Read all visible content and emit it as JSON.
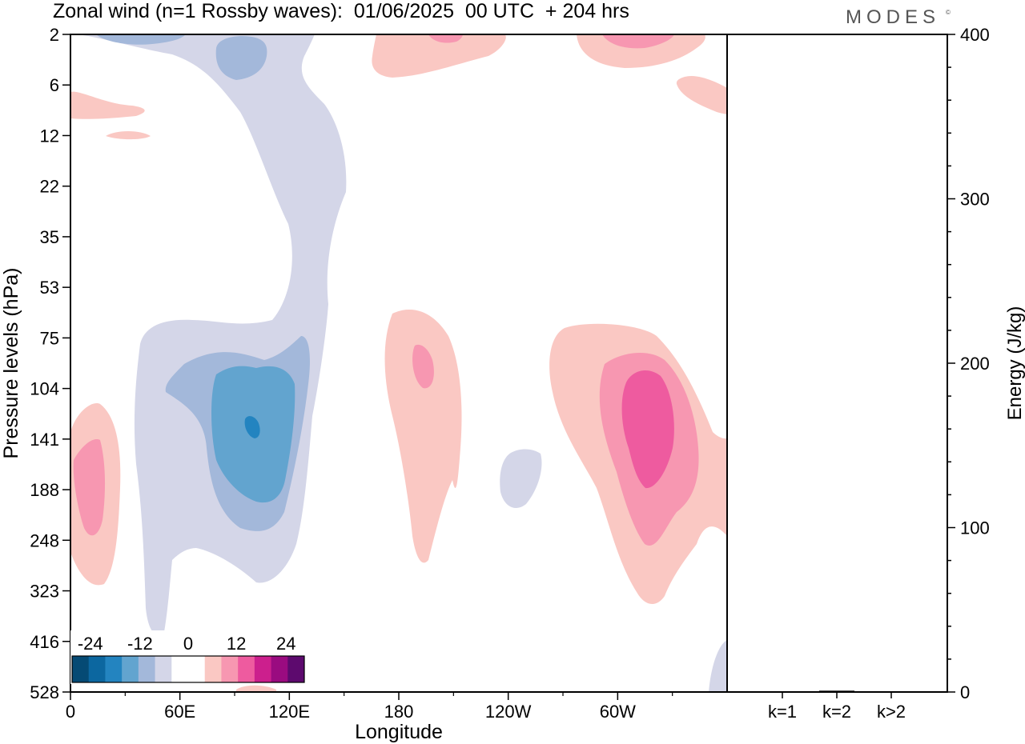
{
  "title": "Zonal wind (n=1 Rossby waves):  01/06/2025  00 UTC  + 204 hrs",
  "brand": "MODES",
  "brand_mark": "©",
  "colors": {
    "neg_light": "#d4d6e8",
    "neg_2": "#a3b8da",
    "neg_3": "#62a4cf",
    "neg_4": "#2384c0",
    "neg_5": "#0c67a0",
    "neg_6": "#054a74",
    "pos_light": "#fac8c3",
    "pos_2": "#f797b1",
    "pos_3": "#ee5b9f",
    "pos_4": "#cc1f8d",
    "pos_5": "#9a0b80",
    "pos_6": "#5d0a6e",
    "zero": "#ffffff"
  },
  "chart_data": [
    {
      "type": "heatmap",
      "title": "Zonal wind (n=1 Rossby waves):  01/06/2025  00 UTC  + 204 hrs",
      "xlabel": "Longitude",
      "ylabel": "Pressure levels (hPa)",
      "x_ticks": [
        "0",
        "60E",
        "120E",
        "180",
        "120W",
        "60W"
      ],
      "x_tick_degrees": [
        0,
        60,
        120,
        180,
        240,
        300
      ],
      "xlim": [
        0,
        360
      ],
      "y_ticks": [
        "2",
        "6",
        "12",
        "22",
        "35",
        "53",
        "75",
        "104",
        "141",
        "188",
        "248",
        "323",
        "416",
        "528"
      ],
      "y_scale": "model levels, top 2 hPa to bottom 528 hPa",
      "colorbar": {
        "tick_labels": [
          "-24",
          "-12",
          "0",
          "12",
          "24"
        ],
        "levels": [
          -30,
          -24,
          -18,
          -12,
          -6,
          -3,
          3,
          6,
          12,
          18,
          24,
          30
        ],
        "placement": "bottom-left inside plot"
      },
      "features": [
        {
          "sign": "negative",
          "max_magnitude": 24,
          "lon_center": 100,
          "level_center": "141"
        },
        {
          "sign": "negative",
          "max_magnitude": 6,
          "lon_center": 245,
          "level_center": "188"
        },
        {
          "sign": "negative",
          "max_magnitude": 6,
          "lon_center": 80,
          "level_center": "2"
        },
        {
          "sign": "positive",
          "max_magnitude": 12,
          "lon_center": 10,
          "level_center": "188"
        },
        {
          "sign": "positive",
          "max_magnitude": 12,
          "lon_center": 190,
          "level_center": "104"
        },
        {
          "sign": "positive",
          "max_magnitude": 18,
          "lon_center": 316,
          "level_center": "141"
        },
        {
          "sign": "positive",
          "max_magnitude": 6,
          "lon_center": 325,
          "level_center": "2"
        }
      ]
    },
    {
      "type": "bar",
      "ylabel": "Energy (J/kg)",
      "categories": [
        "k=1",
        "k=2",
        "k>2"
      ],
      "values": [
        0.3,
        0.8,
        0.4
      ],
      "ylim": [
        0,
        400
      ],
      "y_ticks": [
        "0",
        "100",
        "200",
        "300",
        "400"
      ]
    }
  ]
}
